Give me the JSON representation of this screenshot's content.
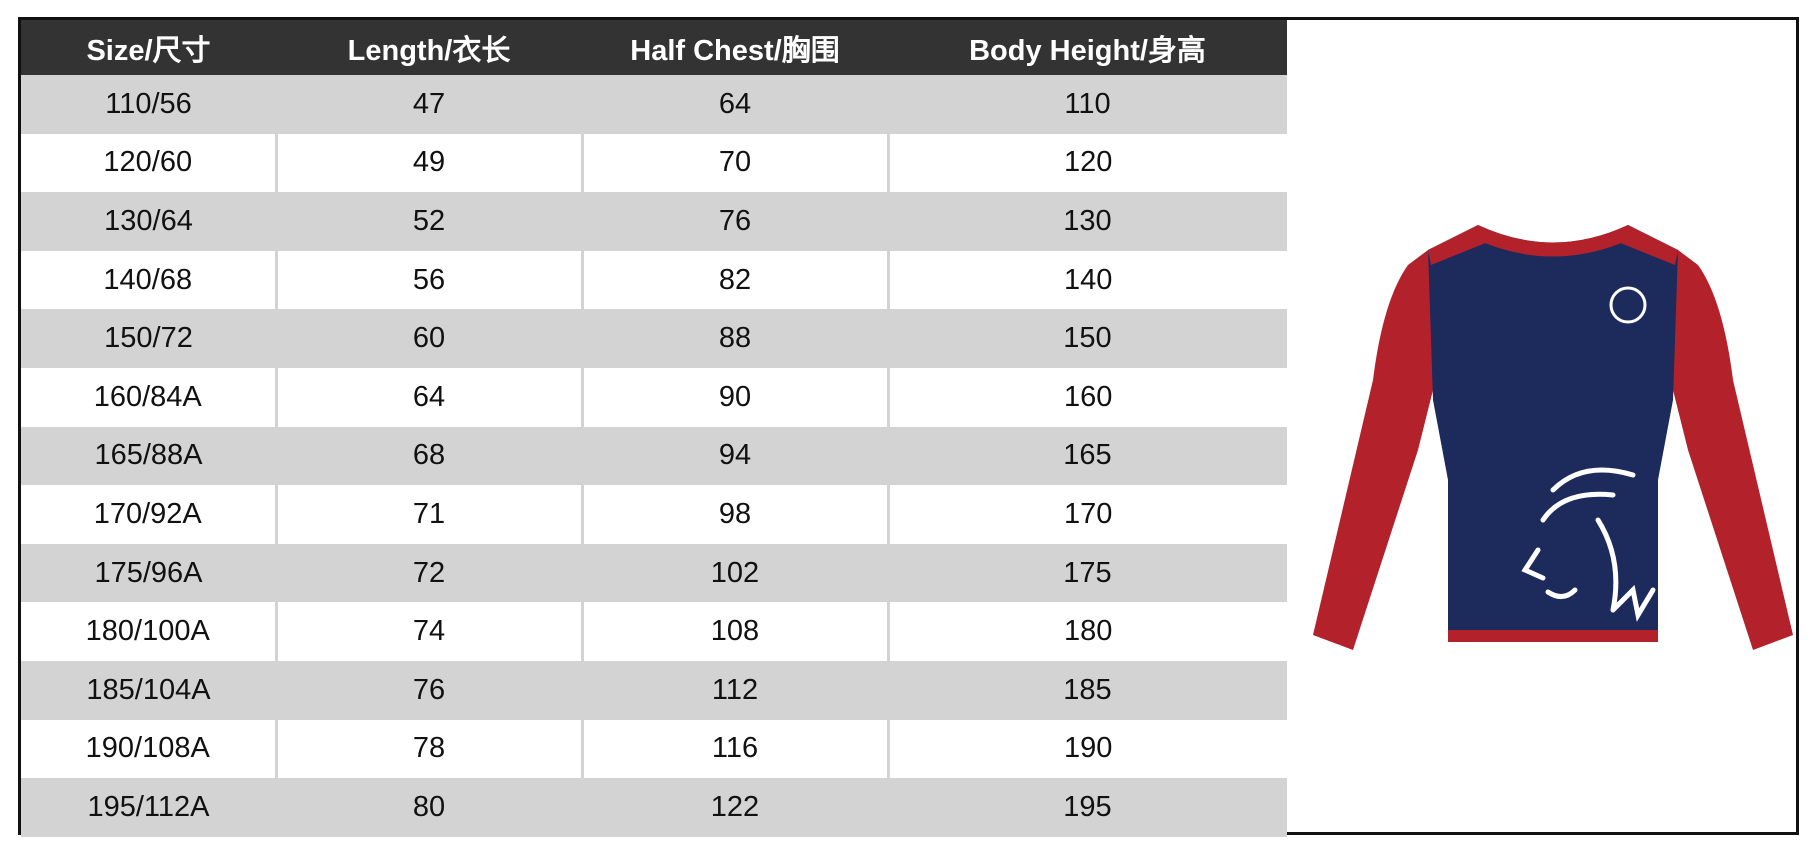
{
  "table": {
    "headers": [
      "Size/尺寸",
      "Length/衣长",
      "Half Chest/胸围",
      "Body Height/身高"
    ],
    "rows": [
      [
        "110/56",
        "47",
        "64",
        "110"
      ],
      [
        "120/60",
        "49",
        "70",
        "120"
      ],
      [
        "130/64",
        "52",
        "76",
        "130"
      ],
      [
        "140/68",
        "56",
        "82",
        "140"
      ],
      [
        "150/72",
        "60",
        "88",
        "150"
      ],
      [
        "160/84A",
        "64",
        "90",
        "160"
      ],
      [
        "165/88A",
        "68",
        "94",
        "165"
      ],
      [
        "170/92A",
        "71",
        "98",
        "170"
      ],
      [
        "175/96A",
        "72",
        "102",
        "175"
      ],
      [
        "180/100A",
        "74",
        "108",
        "180"
      ],
      [
        "185/104A",
        "76",
        "112",
        "185"
      ],
      [
        "190/108A",
        "78",
        "116",
        "190"
      ],
      [
        "195/112A",
        "80",
        "122",
        "195"
      ]
    ]
  },
  "colors": {
    "header_bg": "#333333",
    "stripe": "#d3d3d3",
    "shirt_body": "#1c2a5c",
    "shirt_sleeve": "#b3222b"
  },
  "image": {
    "icon": "long-sleeve-jersey-lion-icon"
  }
}
